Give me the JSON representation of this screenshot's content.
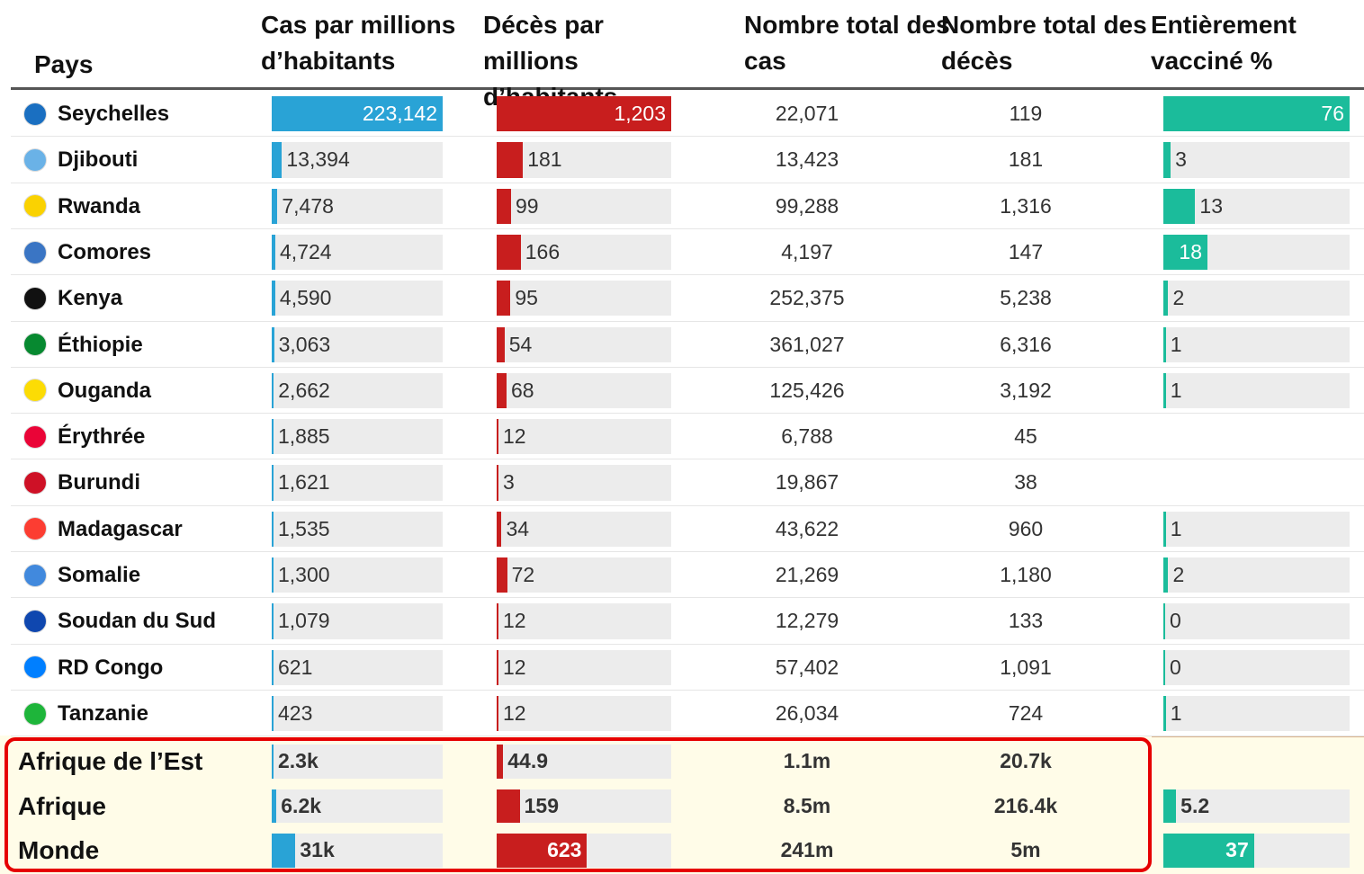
{
  "table": {
    "headers": [
      "Pays",
      "Cas par millions d’habitants",
      "Décès par millions d’habitants",
      "Nombre total des cas",
      "Nombre total des décès",
      "Entièrement vacciné %"
    ],
    "rows": [
      [
        "Seychelles",
        "223,142",
        "1,203",
        "22,071",
        "119",
        "76"
      ],
      [
        "Djibouti",
        "13,394",
        "181",
        "13,423",
        "181",
        "3"
      ],
      [
        "Rwanda",
        "7,478",
        "99",
        "99,288",
        "1,316",
        "13"
      ],
      [
        "Comores",
        "4,724",
        "166",
        "4,197",
        "147",
        "18"
      ],
      [
        "Kenya",
        "4,590",
        "95",
        "252,375",
        "5,238",
        "2"
      ],
      [
        "Éthiopie",
        "3,063",
        "54",
        "361,027",
        "6,316",
        "1"
      ],
      [
        "Ouganda",
        "2,662",
        "68",
        "125,426",
        "3,192",
        "1"
      ],
      [
        "Érythrée",
        "1,885",
        "12",
        "6,788",
        "45",
        null
      ],
      [
        "Burundi",
        "1,621",
        "3",
        "19,867",
        "38",
        null
      ],
      [
        "Madagascar",
        "1,535",
        "34",
        "43,622",
        "960",
        "1"
      ],
      [
        "Somalie",
        "1,300",
        "72",
        "21,269",
        "1,180",
        "2"
      ],
      [
        "Soudan du Sud",
        "1,079",
        "12",
        "12,279",
        "133",
        "0"
      ],
      [
        "RD Congo",
        "621",
        "12",
        "57,402",
        "1,091",
        "0"
      ],
      [
        "Tanzanie",
        "423",
        "12",
        "26,034",
        "724",
        "1"
      ]
    ],
    "summary": [
      [
        "Afrique de l’Est",
        "2.3k",
        "44.9",
        "1.1m",
        "20.7k",
        null
      ],
      [
        "Afrique",
        "6.2k",
        "159",
        "8.5m",
        "216.4k",
        "5.2"
      ],
      [
        "Monde",
        "31k",
        "623",
        "241m",
        "5m",
        "37"
      ]
    ]
  }
}
